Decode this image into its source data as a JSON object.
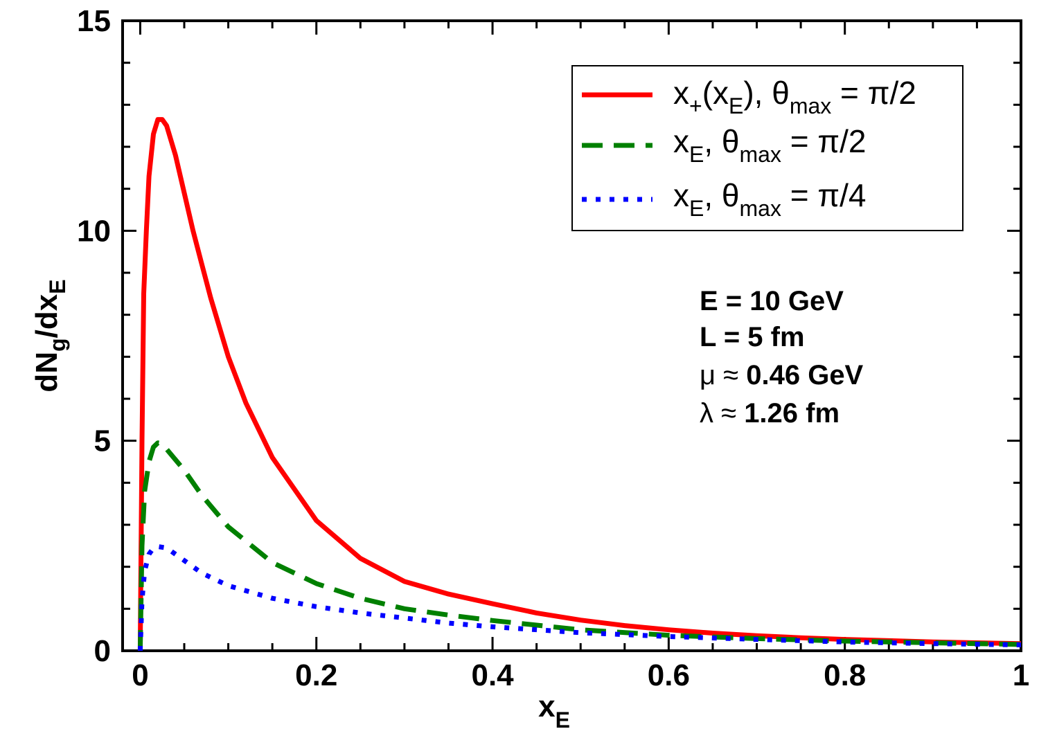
{
  "chart_data": {
    "type": "line",
    "title": "",
    "xlabel": {
      "main": "x",
      "sub": "E"
    },
    "ylabel": {
      "p1": "dN",
      "s1": "g",
      "p2": "/dx",
      "s2": "E"
    },
    "xlim": [
      -0.02,
      1.0
    ],
    "ylim": [
      0,
      15
    ],
    "xticks": [
      0,
      0.2,
      0.4,
      0.6,
      0.8,
      1.0
    ],
    "xtick_labels": [
      "0",
      "0.2",
      "0.4",
      "0.6",
      "0.8",
      "1"
    ],
    "yticks": [
      0,
      5,
      10,
      15
    ],
    "ytick_labels": [
      "0",
      "5",
      "10",
      "15"
    ],
    "legend_position": "top-right",
    "series": [
      {
        "name": "x+(xE), θmax = π/2",
        "legend": {
          "a": "x",
          "a_sub": "+",
          "b": "(x",
          "b_sub": "E",
          "c": "), θ",
          "c_sub": "max",
          "d": " = π/2"
        },
        "color": "#ff0000",
        "style": "solid",
        "x": [
          0,
          0.002,
          0.004,
          0.007,
          0.01,
          0.015,
          0.02,
          0.025,
          0.03,
          0.04,
          0.05,
          0.06,
          0.07,
          0.08,
          0.1,
          0.12,
          0.15,
          0.2,
          0.25,
          0.3,
          0.35,
          0.4,
          0.45,
          0.5,
          0.55,
          0.6,
          0.65,
          0.7,
          0.75,
          0.8,
          0.85,
          0.9,
          0.95,
          1.0
        ],
        "y": [
          0,
          5.0,
          8.5,
          10.0,
          11.3,
          12.3,
          12.65,
          12.65,
          12.5,
          11.8,
          10.9,
          10.0,
          9.2,
          8.4,
          7.0,
          5.9,
          4.6,
          3.1,
          2.2,
          1.65,
          1.35,
          1.12,
          0.9,
          0.73,
          0.6,
          0.5,
          0.42,
          0.36,
          0.31,
          0.27,
          0.24,
          0.21,
          0.19,
          0.17
        ]
      },
      {
        "name": "xE, θmax = π/2",
        "legend": {
          "a": "x",
          "a_sub": "E",
          "b": ", θ",
          "b_sub": "max",
          "c": " = π/2"
        },
        "color": "#008000",
        "style": "dashed",
        "x": [
          0,
          0.002,
          0.005,
          0.01,
          0.015,
          0.02,
          0.025,
          0.03,
          0.04,
          0.05,
          0.07,
          0.1,
          0.15,
          0.2,
          0.25,
          0.3,
          0.35,
          0.4,
          0.5,
          0.6,
          0.7,
          0.8,
          0.9,
          1.0
        ],
        "y": [
          0,
          2.5,
          3.8,
          4.5,
          4.85,
          4.95,
          4.93,
          4.8,
          4.55,
          4.3,
          3.7,
          2.95,
          2.1,
          1.6,
          1.25,
          1.0,
          0.85,
          0.72,
          0.5,
          0.37,
          0.29,
          0.23,
          0.19,
          0.15
        ]
      },
      {
        "name": "xE, θmax = π/4",
        "legend": {
          "a": "x",
          "a_sub": "E",
          "b": ", θ",
          "b_sub": "max",
          "c": " = π/4"
        },
        "color": "#0000ff",
        "style": "dotted",
        "x": [
          0,
          0.002,
          0.005,
          0.01,
          0.015,
          0.02,
          0.03,
          0.04,
          0.05,
          0.07,
          0.1,
          0.15,
          0.2,
          0.25,
          0.3,
          0.35,
          0.4,
          0.5,
          0.6,
          0.7,
          0.8,
          0.9,
          1.0
        ],
        "y": [
          0,
          1.2,
          1.9,
          2.3,
          2.45,
          2.48,
          2.45,
          2.3,
          2.15,
          1.85,
          1.55,
          1.25,
          1.05,
          0.9,
          0.78,
          0.66,
          0.57,
          0.43,
          0.34,
          0.27,
          0.21,
          0.17,
          0.14
        ]
      }
    ],
    "annotations": [
      {
        "prefix": "",
        "text": "E = 10 GeV"
      },
      {
        "prefix": "",
        "text": "L = 5 fm"
      },
      {
        "prefix": "μ ≈ ",
        "text": "0.46 GeV"
      },
      {
        "prefix": "λ ≈ ",
        "text": "1.26 fm"
      }
    ]
  }
}
